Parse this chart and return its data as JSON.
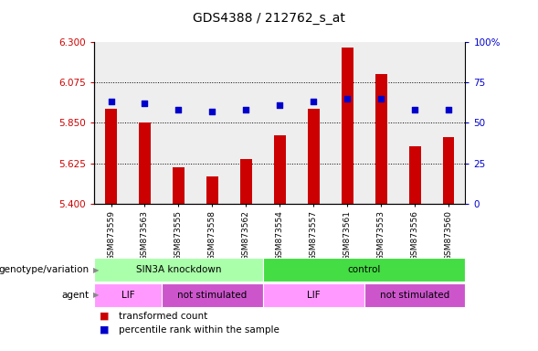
{
  "title": "GDS4388 / 212762_s_at",
  "samples": [
    "GSM873559",
    "GSM873563",
    "GSM873555",
    "GSM873558",
    "GSM873562",
    "GSM873554",
    "GSM873557",
    "GSM873561",
    "GSM873553",
    "GSM873556",
    "GSM873560"
  ],
  "bar_values": [
    5.93,
    5.85,
    5.6,
    5.55,
    5.65,
    5.78,
    5.93,
    6.27,
    6.12,
    5.72,
    5.77
  ],
  "percentile_values": [
    63,
    62,
    58,
    57,
    58,
    61,
    63,
    65,
    65,
    58,
    58
  ],
  "ylim_left": [
    5.4,
    6.3
  ],
  "ylim_right": [
    0,
    100
  ],
  "yticks_left": [
    5.4,
    5.625,
    5.85,
    6.075,
    6.3
  ],
  "yticks_right": [
    0,
    25,
    50,
    75,
    100
  ],
  "bar_color": "#cc0000",
  "dot_color": "#0000cc",
  "bg_color": "#ffffff",
  "genotype_groups": [
    {
      "label": "SIN3A knockdown",
      "start": 0,
      "end": 5,
      "color": "#aaffaa"
    },
    {
      "label": "control",
      "start": 5,
      "end": 11,
      "color": "#44dd44"
    }
  ],
  "agent_groups": [
    {
      "label": "LIF",
      "start": 0,
      "end": 2,
      "color": "#ff99ff"
    },
    {
      "label": "not stimulated",
      "start": 2,
      "end": 5,
      "color": "#cc55cc"
    },
    {
      "label": "LIF",
      "start": 5,
      "end": 8,
      "color": "#ff99ff"
    },
    {
      "label": "not stimulated",
      "start": 8,
      "end": 11,
      "color": "#cc55cc"
    }
  ],
  "legend_items": [
    {
      "label": "transformed count",
      "color": "#cc0000"
    },
    {
      "label": "percentile rank within the sample",
      "color": "#0000cc"
    }
  ],
  "left_label_color": "#cc0000",
  "right_label_color": "#0000cc",
  "bar_width": 0.35
}
